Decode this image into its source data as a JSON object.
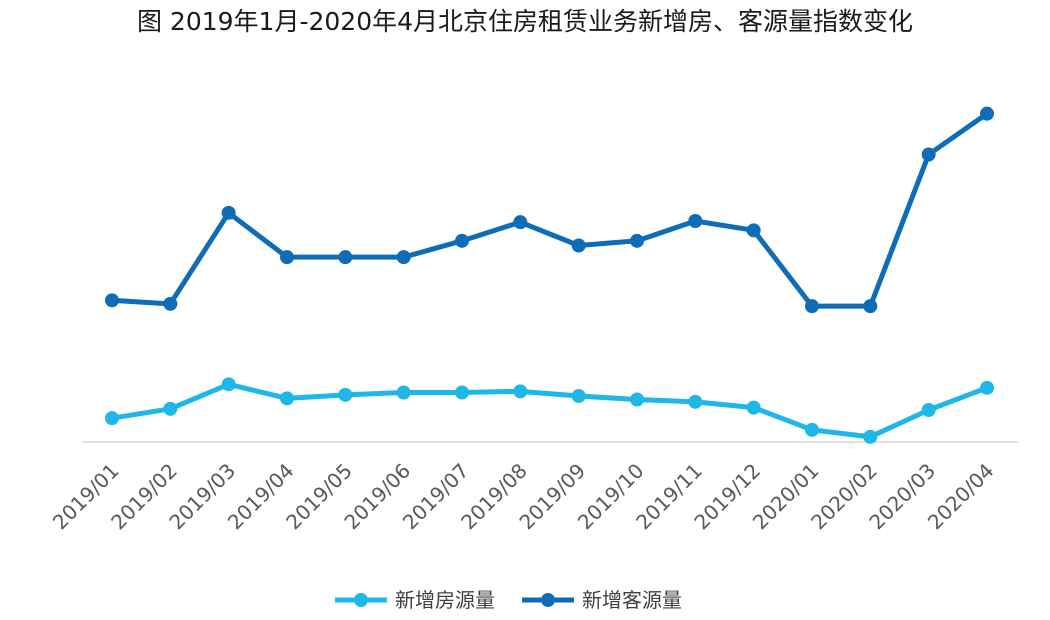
{
  "chart_data": {
    "type": "line",
    "title": "图 2019年1月-2020年4月北京住房租赁业务新增房、客源量指数变化",
    "categories": [
      "2019/01",
      "2019/02",
      "2019/03",
      "2019/04",
      "2019/05",
      "2019/06",
      "2019/07",
      "2019/08",
      "2019/09",
      "2019/10",
      "2019/11",
      "2019/12",
      "2020/01",
      "2020/02",
      "2020/03",
      "2020/04"
    ],
    "series": [
      {
        "name": "新增房源量",
        "color": "#1fb6e8",
        "values": [
          29,
          37,
          58,
          46,
          49,
          51,
          51,
          52,
          48,
          45,
          43,
          38,
          19,
          13,
          36,
          55
        ]
      },
      {
        "name": "新增客源量",
        "color": "#0f6cb6",
        "values": [
          130,
          127,
          205,
          167,
          167,
          167,
          181,
          197,
          177,
          181,
          198,
          190,
          125,
          125,
          255,
          290
        ]
      }
    ],
    "ylim": [
      0,
      300
    ],
    "y_axis_visible": false,
    "grid": false,
    "legend_position": "bottom"
  }
}
